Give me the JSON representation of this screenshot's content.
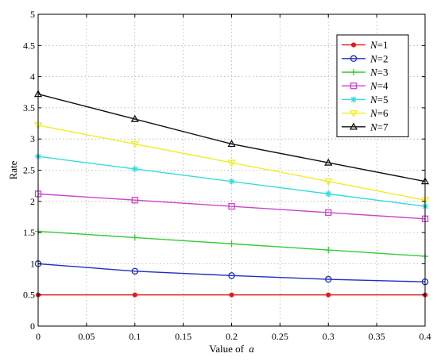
{
  "chart_data": {
    "type": "line",
    "xlabel": "Value of",
    "xlabel_var": "a",
    "ylabel": "Rate",
    "x": [
      0,
      0.1,
      0.2,
      0.3,
      0.4
    ],
    "xlim": [
      0,
      0.4
    ],
    "ylim": [
      0,
      5
    ],
    "xticks": [
      "0",
      "0.05",
      "0.1",
      "0.15",
      "0.2",
      "0.25",
      "0.3",
      "0.35",
      "0.4"
    ],
    "yticks": [
      "0",
      "0.5",
      "1",
      "1.5",
      "2",
      "2.5",
      "3",
      "3.5",
      "4",
      "4.5",
      "5"
    ],
    "grid": true,
    "legend_position": "top-right",
    "series": [
      {
        "name_var": "N",
        "name_suffix": "=1",
        "color": "#e41a1c",
        "marker": "dot",
        "values": [
          0.5,
          0.5,
          0.5,
          0.5,
          0.5
        ]
      },
      {
        "name_var": "N",
        "name_suffix": "=2",
        "color": "#1f2fbf",
        "marker": "circle",
        "values": [
          1.0,
          0.88,
          0.81,
          0.75,
          0.71
        ]
      },
      {
        "name_var": "N",
        "name_suffix": "=3",
        "color": "#33cc33",
        "marker": "plus",
        "values": [
          1.52,
          1.42,
          1.32,
          1.22,
          1.12
        ]
      },
      {
        "name_var": "N",
        "name_suffix": "=4",
        "color": "#cc44cc",
        "marker": "square",
        "values": [
          2.12,
          2.02,
          1.92,
          1.82,
          1.72
        ]
      },
      {
        "name_var": "N",
        "name_suffix": "=5",
        "color": "#33dddd",
        "marker": "star",
        "values": [
          2.72,
          2.52,
          2.32,
          2.12,
          1.92
        ]
      },
      {
        "name_var": "N",
        "name_suffix": "=6",
        "color": "#eeee22",
        "marker": "triangle-down",
        "values": [
          3.22,
          2.92,
          2.62,
          2.32,
          2.02
        ]
      },
      {
        "name_var": "N",
        "name_suffix": "=7",
        "color": "#111111",
        "marker": "triangle-up",
        "values": [
          3.72,
          3.32,
          2.92,
          2.62,
          2.32
        ]
      }
    ]
  }
}
